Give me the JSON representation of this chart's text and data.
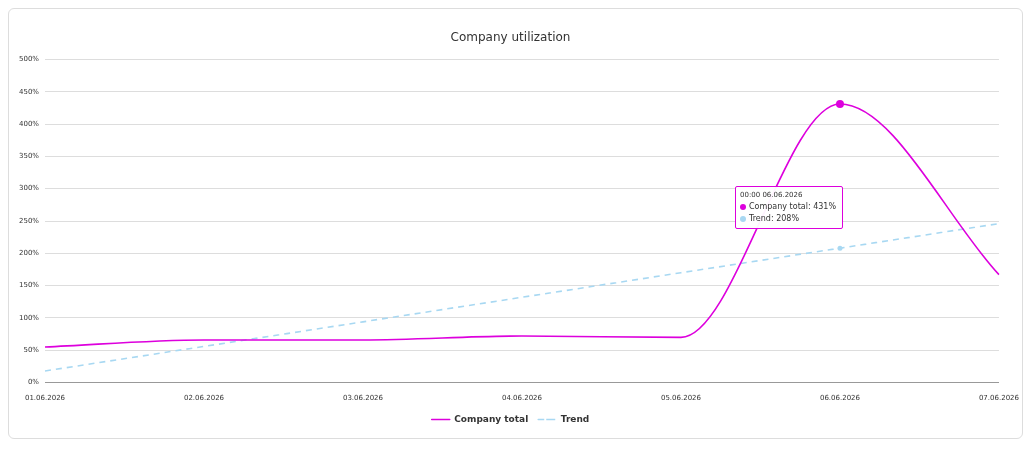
{
  "chart_data": {
    "type": "line",
    "title": "Company utilization",
    "categories": [
      "01.06.2026",
      "02.06.2026",
      "03.06.2026",
      "04.06.2026",
      "05.06.2026",
      "06.06.2026",
      "07.06.2026"
    ],
    "series": [
      {
        "name": "Company total",
        "color": "#dd00dd",
        "values": [
          55,
          66,
          66,
          72,
          70,
          431,
          167
        ],
        "line_style": "solid"
      },
      {
        "name": "Trend",
        "color": "#a8d8f2",
        "values": [
          18,
          56,
          94,
          132,
          170,
          208,
          246
        ],
        "line_style": "dashed"
      }
    ],
    "ylim": [
      0,
      500
    ],
    "yticks": [
      {
        "value": 0,
        "label": "0%"
      },
      {
        "value": 50,
        "label": "50%"
      },
      {
        "value": 100,
        "label": "100%"
      },
      {
        "value": 150,
        "label": "150%"
      },
      {
        "value": 200,
        "label": "200%"
      },
      {
        "value": 250,
        "label": "250%"
      },
      {
        "value": 300,
        "label": "300%"
      },
      {
        "value": 350,
        "label": "350%"
      },
      {
        "value": 400,
        "label": "400%"
      },
      {
        "value": 450,
        "label": "450%"
      },
      {
        "value": 500,
        "label": "500%"
      }
    ],
    "grid": "y",
    "legend": "bottom",
    "marker": "none",
    "annotations": [
      "00:00 06.06.2026",
      "Company total: 431%",
      "Trend: 208%"
    ]
  }
}
